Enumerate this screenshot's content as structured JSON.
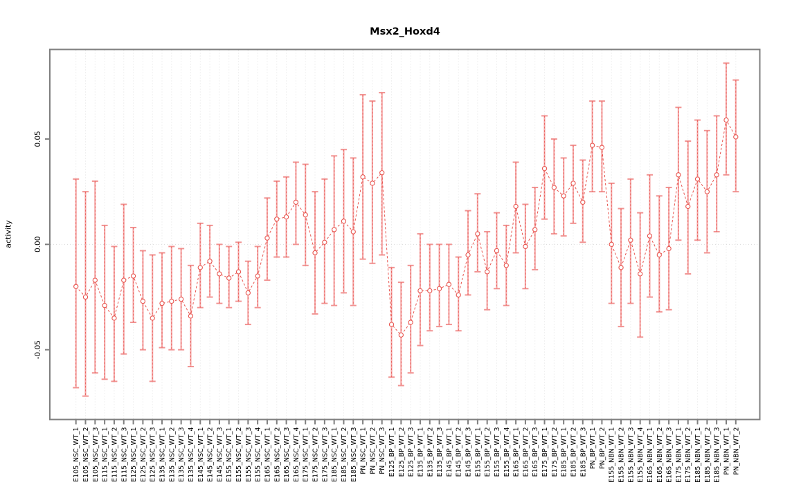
{
  "chart_data": {
    "type": "line",
    "title": "Msx2_Hoxd4",
    "xlabel": "",
    "ylabel": "activity",
    "yticks": [
      -0.05,
      0,
      0.05
    ],
    "ylim": [
      -0.0831,
      0.0925
    ],
    "grid": "vertical dotted gridline at every category; dotted horizontal line at y=0",
    "legend": "none",
    "marker": "open-circle",
    "line_style": "dashed",
    "error_bars": true,
    "colors": {
      "series": "#e8544e",
      "error_bar_pale": "#f5a9a9",
      "error_bar_cap": "#f19392",
      "gridline": "#e2e2e2",
      "zero_line": "#d9d9d9",
      "frame": "#7f7f7f",
      "text": "#000000"
    },
    "points": [
      {
        "label": "E105_NSC_WT_1",
        "y": -0.02,
        "lo": -0.068,
        "hi": 0.031
      },
      {
        "label": "E105_NSC_WT_2",
        "y": -0.025,
        "lo": -0.072,
        "hi": 0.025
      },
      {
        "label": "E105_NSC_WT_3",
        "y": -0.017,
        "lo": -0.061,
        "hi": 0.03
      },
      {
        "label": "E115_NSC_WT_1",
        "y": -0.029,
        "lo": -0.064,
        "hi": 0.009
      },
      {
        "label": "E115_NSC_WT_2",
        "y": -0.035,
        "lo": -0.065,
        "hi": -0.001
      },
      {
        "label": "E115_NSC_WT_3",
        "y": -0.017,
        "lo": -0.052,
        "hi": 0.019
      },
      {
        "label": "E125_NSC_WT_1",
        "y": -0.015,
        "lo": -0.037,
        "hi": 0.008
      },
      {
        "label": "E125_NSC_WT_2",
        "y": -0.027,
        "lo": -0.05,
        "hi": -0.003
      },
      {
        "label": "E125_NSC_WT_3",
        "y": -0.035,
        "lo": -0.065,
        "hi": -0.005
      },
      {
        "label": "E135_NSC_WT_1",
        "y": -0.028,
        "lo": -0.049,
        "hi": -0.004
      },
      {
        "label": "E135_NSC_WT_2",
        "y": -0.027,
        "lo": -0.05,
        "hi": -0.001
      },
      {
        "label": "E135_NSC_WT_3",
        "y": -0.026,
        "lo": -0.05,
        "hi": -0.002
      },
      {
        "label": "E135_NSC_WT_4",
        "y": -0.034,
        "lo": -0.058,
        "hi": -0.01
      },
      {
        "label": "E145_NSC_WT_1",
        "y": -0.011,
        "lo": -0.03,
        "hi": 0.01
      },
      {
        "label": "E145_NSC_WT_2",
        "y": -0.008,
        "lo": -0.025,
        "hi": 0.009
      },
      {
        "label": "E145_NSC_WT_3",
        "y": -0.014,
        "lo": -0.028,
        "hi": 0.0
      },
      {
        "label": "E155_NSC_WT_1",
        "y": -0.016,
        "lo": -0.03,
        "hi": -0.001
      },
      {
        "label": "E155_NSC_WT_2",
        "y": -0.013,
        "lo": -0.027,
        "hi": 0.001
      },
      {
        "label": "E155_NSC_WT_3",
        "y": -0.023,
        "lo": -0.038,
        "hi": -0.008
      },
      {
        "label": "E155_NSC_WT_4",
        "y": -0.015,
        "lo": -0.03,
        "hi": -0.001
      },
      {
        "label": "E165_NSC_WT_1",
        "y": 0.003,
        "lo": -0.017,
        "hi": 0.022
      },
      {
        "label": "E165_NSC_WT_2",
        "y": 0.012,
        "lo": -0.006,
        "hi": 0.03
      },
      {
        "label": "E165_NSC_WT_3",
        "y": 0.013,
        "lo": -0.006,
        "hi": 0.032
      },
      {
        "label": "E165_NSC_WT_4",
        "y": 0.02,
        "lo": 0.0,
        "hi": 0.039
      },
      {
        "label": "E175_NSC_WT_1",
        "y": 0.014,
        "lo": -0.01,
        "hi": 0.038
      },
      {
        "label": "E175_NSC_WT_2",
        "y": -0.004,
        "lo": -0.033,
        "hi": 0.025
      },
      {
        "label": "E175_NSC_WT_3",
        "y": 0.001,
        "lo": -0.028,
        "hi": 0.031
      },
      {
        "label": "E185_NSC_WT_1",
        "y": 0.007,
        "lo": -0.029,
        "hi": 0.042
      },
      {
        "label": "E185_NSC_WT_2",
        "y": 0.011,
        "lo": -0.023,
        "hi": 0.045
      },
      {
        "label": "E185_NSC_WT_3",
        "y": 0.006,
        "lo": -0.029,
        "hi": 0.041
      },
      {
        "label": "PN_NSC_WT_1",
        "y": 0.032,
        "lo": -0.007,
        "hi": 0.071
      },
      {
        "label": "PN_NSC_WT_2",
        "y": 0.029,
        "lo": -0.009,
        "hi": 0.068
      },
      {
        "label": "PN_NSC_WT_3",
        "y": 0.034,
        "lo": -0.005,
        "hi": 0.072
      },
      {
        "label": "E125_BP_WT_1",
        "y": -0.038,
        "lo": -0.063,
        "hi": -0.011
      },
      {
        "label": "E125_BP_WT_2",
        "y": -0.043,
        "lo": -0.067,
        "hi": -0.018
      },
      {
        "label": "E125_BP_WT_3",
        "y": -0.037,
        "lo": -0.061,
        "hi": -0.01
      },
      {
        "label": "E135_BP_WT_1",
        "y": -0.022,
        "lo": -0.048,
        "hi": 0.005
      },
      {
        "label": "E135_BP_WT_2",
        "y": -0.022,
        "lo": -0.041,
        "hi": 0.0
      },
      {
        "label": "E135_BP_WT_3",
        "y": -0.021,
        "lo": -0.039,
        "hi": 0.0
      },
      {
        "label": "E145_BP_WT_1",
        "y": -0.019,
        "lo": -0.038,
        "hi": 0.0
      },
      {
        "label": "E145_BP_WT_2",
        "y": -0.024,
        "lo": -0.041,
        "hi": -0.006
      },
      {
        "label": "E145_BP_WT_3",
        "y": -0.005,
        "lo": -0.024,
        "hi": 0.016
      },
      {
        "label": "E155_BP_WT_1",
        "y": 0.005,
        "lo": -0.013,
        "hi": 0.024
      },
      {
        "label": "E155_BP_WT_2",
        "y": -0.013,
        "lo": -0.031,
        "hi": 0.006
      },
      {
        "label": "E155_BP_WT_3",
        "y": -0.003,
        "lo": -0.021,
        "hi": 0.015
      },
      {
        "label": "E155_BP_WT_4",
        "y": -0.01,
        "lo": -0.029,
        "hi": 0.009
      },
      {
        "label": "E165_BP_WT_1",
        "y": 0.018,
        "lo": -0.004,
        "hi": 0.039
      },
      {
        "label": "E165_BP_WT_2",
        "y": -0.001,
        "lo": -0.021,
        "hi": 0.019
      },
      {
        "label": "E165_BP_WT_3",
        "y": 0.007,
        "lo": -0.012,
        "hi": 0.027
      },
      {
        "label": "E175_BP_WT_1",
        "y": 0.036,
        "lo": 0.012,
        "hi": 0.061
      },
      {
        "label": "E175_BP_WT_2",
        "y": 0.027,
        "lo": 0.005,
        "hi": 0.05
      },
      {
        "label": "E185_BP_WT_1",
        "y": 0.023,
        "lo": 0.004,
        "hi": 0.041
      },
      {
        "label": "E185_BP_WT_2",
        "y": 0.029,
        "lo": 0.01,
        "hi": 0.047
      },
      {
        "label": "E185_BP_WT_3",
        "y": 0.02,
        "lo": 0.001,
        "hi": 0.04
      },
      {
        "label": "PN_BP_WT_1",
        "y": 0.047,
        "lo": 0.025,
        "hi": 0.068
      },
      {
        "label": "PN_BP_WT_2",
        "y": 0.046,
        "lo": 0.025,
        "hi": 0.068
      },
      {
        "label": "E155_NBN_WT_1",
        "y": 0.0,
        "lo": -0.028,
        "hi": 0.029
      },
      {
        "label": "E155_NBN_WT_2",
        "y": -0.011,
        "lo": -0.039,
        "hi": 0.017
      },
      {
        "label": "E155_NBN_WT_3",
        "y": 0.002,
        "lo": -0.028,
        "hi": 0.031
      },
      {
        "label": "E155_NBN_WT_4",
        "y": -0.014,
        "lo": -0.044,
        "hi": 0.015
      },
      {
        "label": "E165_NBN_WT_1",
        "y": 0.004,
        "lo": -0.025,
        "hi": 0.033
      },
      {
        "label": "E165_NBN_WT_2",
        "y": -0.005,
        "lo": -0.032,
        "hi": 0.023
      },
      {
        "label": "E165_NBN_WT_3",
        "y": -0.002,
        "lo": -0.031,
        "hi": 0.027
      },
      {
        "label": "E175_NBN_WT_1",
        "y": 0.033,
        "lo": 0.002,
        "hi": 0.065
      },
      {
        "label": "E175_NBN_WT_2",
        "y": 0.018,
        "lo": -0.014,
        "hi": 0.049
      },
      {
        "label": "E185_NBN_WT_1",
        "y": 0.031,
        "lo": 0.002,
        "hi": 0.059
      },
      {
        "label": "E185_NBN_WT_2",
        "y": 0.025,
        "lo": -0.004,
        "hi": 0.054
      },
      {
        "label": "E185_NBN_WT_3",
        "y": 0.033,
        "lo": 0.006,
        "hi": 0.061
      },
      {
        "label": "PN_NBN_WT_1",
        "y": 0.059,
        "lo": 0.033,
        "hi": 0.086
      },
      {
        "label": "PN_NBN_WT_2",
        "y": 0.051,
        "lo": 0.025,
        "hi": 0.078
      }
    ]
  }
}
